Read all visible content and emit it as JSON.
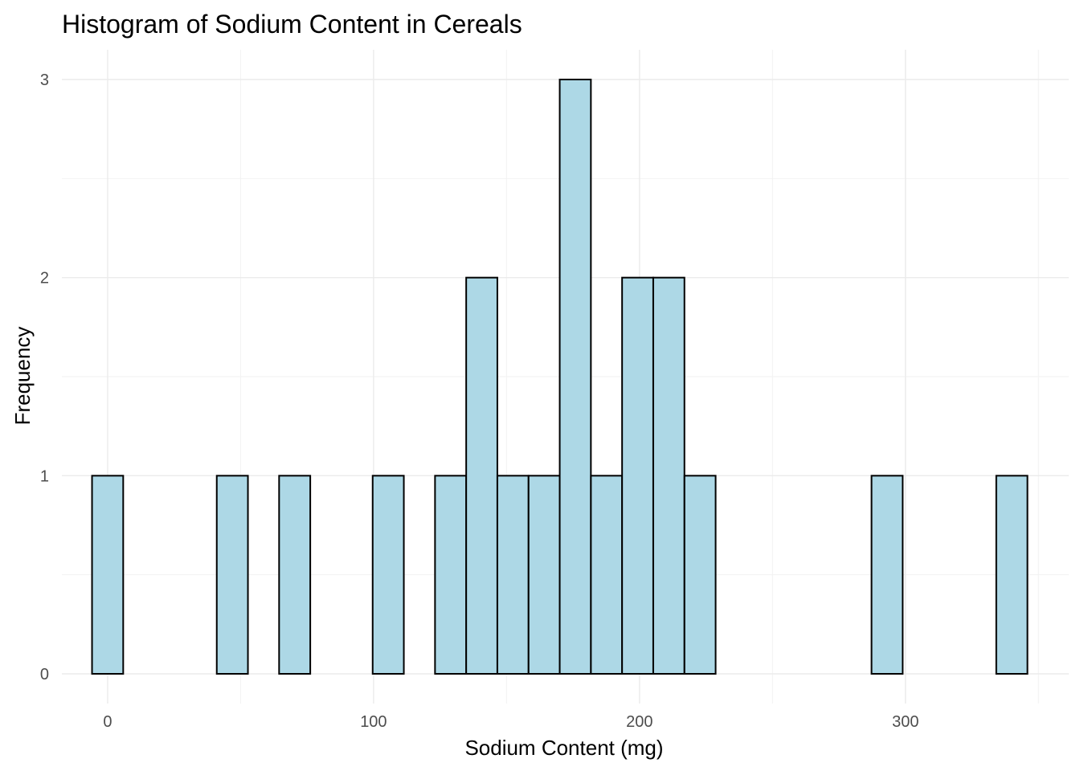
{
  "chart_data": {
    "type": "bar",
    "title": "Histogram of Sodium Content in Cereals",
    "xlabel": "Sodium Content (mg)",
    "ylabel": "Frequency",
    "xlim": [
      -17.2,
      361.4
    ],
    "ylim": [
      -0.15,
      3.15
    ],
    "x_ticks": [
      0,
      100,
      200,
      300
    ],
    "x_tick_labels": [
      "0",
      "100",
      "200",
      "300"
    ],
    "y_ticks": [
      0,
      1,
      2,
      3
    ],
    "y_tick_labels": [
      "0",
      "1",
      "2",
      "3"
    ],
    "bin_width": 11.72,
    "bins": [
      {
        "center": 0,
        "count": 1
      },
      {
        "center": 11.72,
        "count": 0
      },
      {
        "center": 23.45,
        "count": 0
      },
      {
        "center": 35.17,
        "count": 0
      },
      {
        "center": 46.9,
        "count": 1
      },
      {
        "center": 58.62,
        "count": 0
      },
      {
        "center": 70.34,
        "count": 1
      },
      {
        "center": 82.07,
        "count": 0
      },
      {
        "center": 93.79,
        "count": 0
      },
      {
        "center": 105.52,
        "count": 1
      },
      {
        "center": 117.24,
        "count": 0
      },
      {
        "center": 128.97,
        "count": 1
      },
      {
        "center": 140.69,
        "count": 2
      },
      {
        "center": 152.41,
        "count": 1
      },
      {
        "center": 164.14,
        "count": 1
      },
      {
        "center": 175.86,
        "count": 3
      },
      {
        "center": 187.59,
        "count": 1
      },
      {
        "center": 199.31,
        "count": 2
      },
      {
        "center": 211.03,
        "count": 2
      },
      {
        "center": 222.76,
        "count": 1
      },
      {
        "center": 234.48,
        "count": 0
      },
      {
        "center": 246.21,
        "count": 0
      },
      {
        "center": 257.93,
        "count": 0
      },
      {
        "center": 269.66,
        "count": 0
      },
      {
        "center": 281.38,
        "count": 0
      },
      {
        "center": 293.1,
        "count": 1
      },
      {
        "center": 304.83,
        "count": 0
      },
      {
        "center": 316.55,
        "count": 0
      },
      {
        "center": 328.28,
        "count": 0
      },
      {
        "center": 340.0,
        "count": 1
      }
    ],
    "fill_color": "#add8e6",
    "edge_color": "#000000",
    "grid": true,
    "legend": "none"
  }
}
